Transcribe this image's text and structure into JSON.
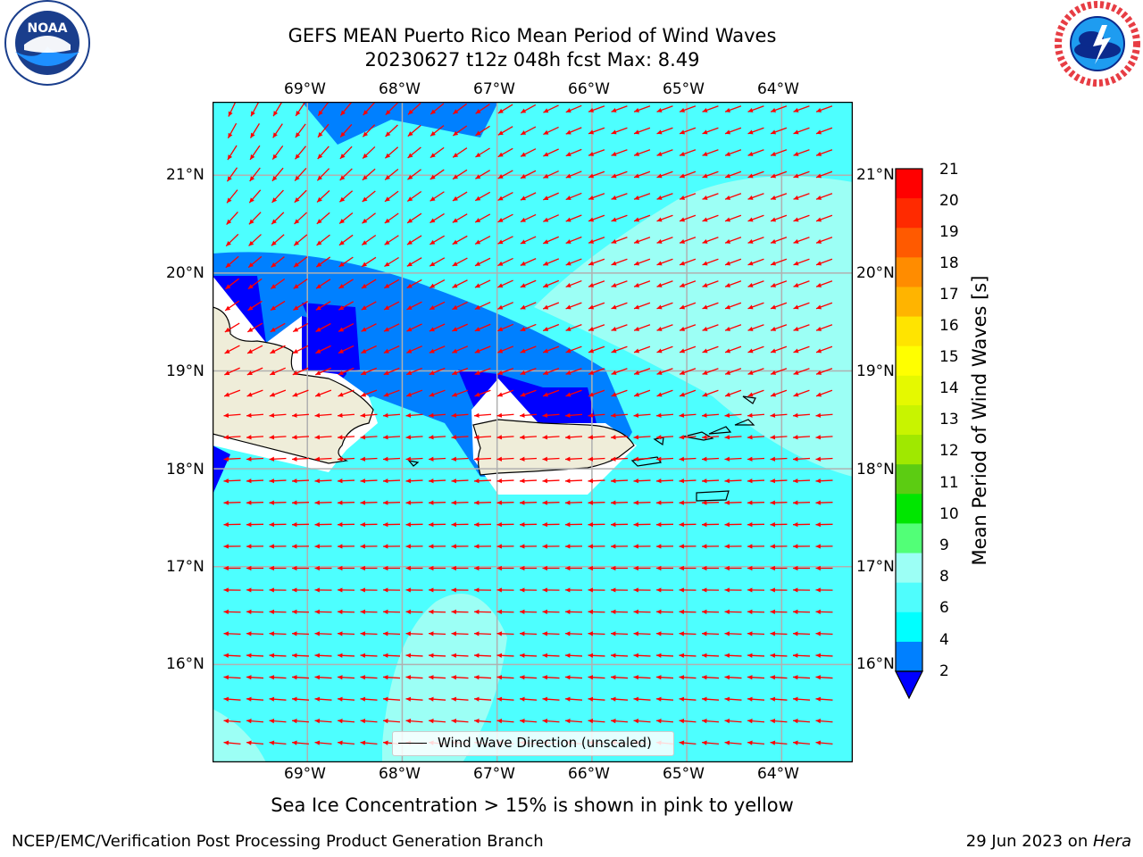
{
  "title": {
    "line1": "GEFS MEAN Puerto Rico Mean Period of Wind Waves",
    "line2": "20230627 t12z 048h fcst   Max: 8.49"
  },
  "subtitle": "Sea Ice Concentration > 15% is shown in pink to yellow",
  "footer": {
    "left": "NCEP/EMC/Verification Post Processing Product Generation Branch",
    "right_date": "29 Jun 2023 on ",
    "right_host": "Hera"
  },
  "map": {
    "lon_ticks": [
      "69°W",
      "68°W",
      "67°W",
      "66°W",
      "65°W",
      "64°W"
    ],
    "lat_ticks": [
      "21°N",
      "20°N",
      "19°N",
      "18°N",
      "17°N",
      "16°N"
    ],
    "lon_range": [
      -70.0,
      -63.25
    ],
    "lat_range": [
      15.0,
      21.75
    ],
    "background_color": "#4dffff",
    "legend_label": "Wind Wave Direction (unscaled)",
    "arrow_color": "#ff0000",
    "land_color": "#efedd9"
  },
  "colorbar": {
    "label": "Mean Period of Wind Waves [s]",
    "ticks": [
      "21",
      "20",
      "19",
      "18",
      "17",
      "16",
      "15",
      "14",
      "13",
      "12",
      "11",
      "10",
      "9",
      "8",
      "6",
      "4",
      "2"
    ],
    "colors": [
      "#ff0000",
      "#ff2a00",
      "#ff5a00",
      "#ff8c00",
      "#ffb400",
      "#ffe400",
      "#ffff00",
      "#e5f900",
      "#c8f400",
      "#a0e800",
      "#5ccc12",
      "#00e600",
      "#52ff77",
      "#9cfff5",
      "#4ffdfd",
      "#00ffff",
      "#0080ff"
    ],
    "extend_color": "#0000ff"
  },
  "logos": {
    "noaa_text": "NOAA",
    "nws_text": "NATIONAL WEATHER SERVICE"
  }
}
